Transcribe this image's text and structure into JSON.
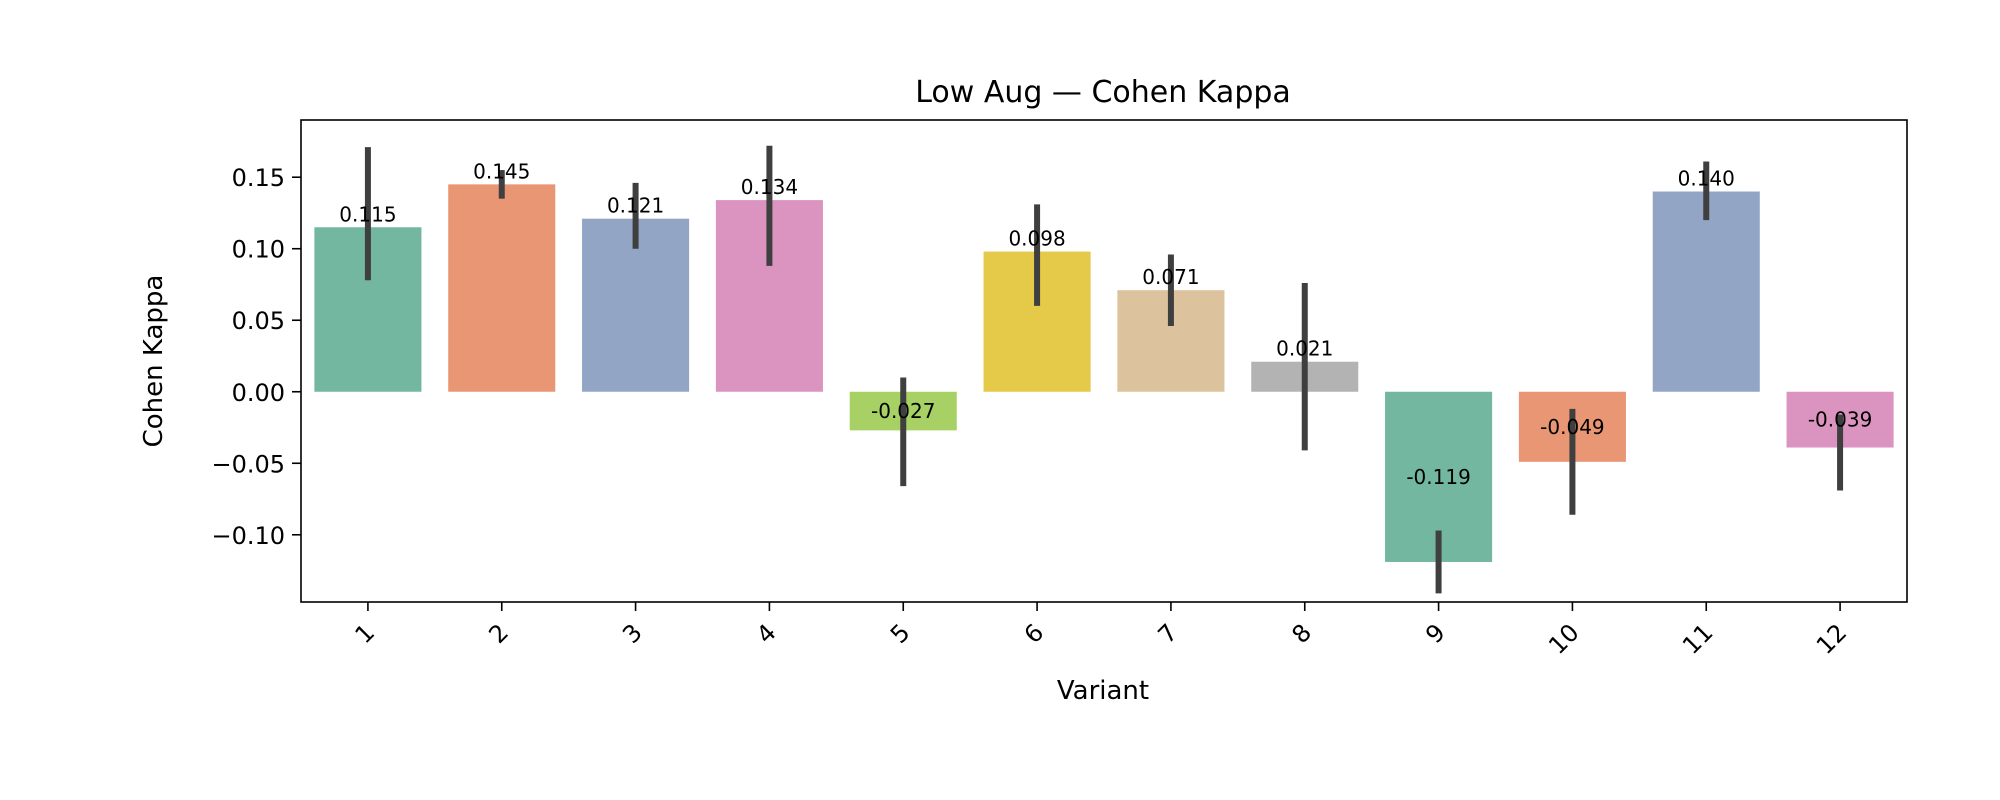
{
  "chart_data": {
    "type": "bar",
    "title": "Low Aug — Cohen Kappa",
    "xlabel": "Variant",
    "ylabel": "Cohen Kappa",
    "ylim": [
      -0.147,
      0.19
    ],
    "yticks": [
      0.15,
      0.1,
      0.05,
      0.0,
      -0.05,
      -0.1
    ],
    "ytick_labels": [
      "0.15",
      "0.10",
      "0.05",
      "0.00",
      "−0.05",
      "−0.10"
    ],
    "grid": false,
    "categories": [
      "1",
      "2",
      "3",
      "4",
      "5",
      "6",
      "7",
      "8",
      "9",
      "10",
      "11",
      "12"
    ],
    "values": [
      0.115,
      0.145,
      0.121,
      0.134,
      -0.027,
      0.098,
      0.071,
      0.021,
      -0.119,
      -0.049,
      0.14,
      -0.039
    ],
    "value_labels": [
      "0.115",
      "0.145",
      "0.121",
      "0.134",
      "-0.027",
      "0.098",
      "0.071",
      "0.021",
      "-0.119",
      "-0.049",
      "0.140",
      "-0.039"
    ],
    "error_low": [
      0.078,
      0.135,
      0.1,
      0.088,
      -0.066,
      0.06,
      0.046,
      -0.041,
      -0.141,
      -0.086,
      0.12,
      -0.069
    ],
    "error_high": [
      0.171,
      0.155,
      0.146,
      0.172,
      0.01,
      0.131,
      0.096,
      0.076,
      -0.097,
      -0.012,
      0.161,
      -0.016
    ],
    "colors": [
      "#73b7a1",
      "#e99675",
      "#93a5c5",
      "#db94c0",
      "#a7d164",
      "#e5c948",
      "#dcc39d",
      "#b3b3b3",
      "#73b7a1",
      "#e99675",
      "#93a5c5",
      "#db94c0"
    ],
    "errorbar_color": "#3f3f3f"
  }
}
